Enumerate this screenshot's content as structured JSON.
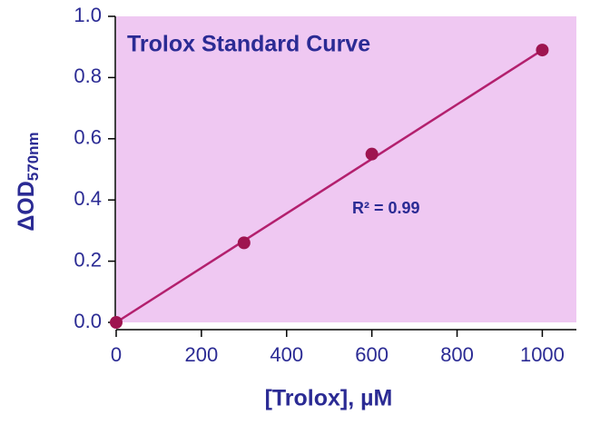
{
  "chart_data": {
    "type": "scatter",
    "title": "Trolox Standard Curve",
    "x_label": "[Trolox], µM",
    "y_label": "ΔOD",
    "y_label_subscript": "570nm",
    "annotation": "R² = 0.99",
    "series": [
      {
        "x": [
          0,
          300,
          600,
          1000
        ],
        "values": [
          0.0,
          0.26,
          0.55,
          0.89
        ],
        "color": "#9e1450"
      }
    ],
    "fit_line": {
      "x": [
        0,
        1000
      ],
      "values": [
        0.0,
        0.89
      ],
      "color": "#b3206e"
    },
    "xlim": [
      0,
      1080
    ],
    "xticks": [
      0,
      200,
      400,
      600,
      800,
      1000
    ],
    "ylim": [
      0,
      1.0
    ],
    "yticks": [
      {
        "value": 0,
        "label": "0.0"
      },
      0.2,
      0.4,
      0.6,
      0.8,
      {
        "value": 1,
        "label": "1.0"
      }
    ],
    "plot_color": "#efc8f2"
  }
}
